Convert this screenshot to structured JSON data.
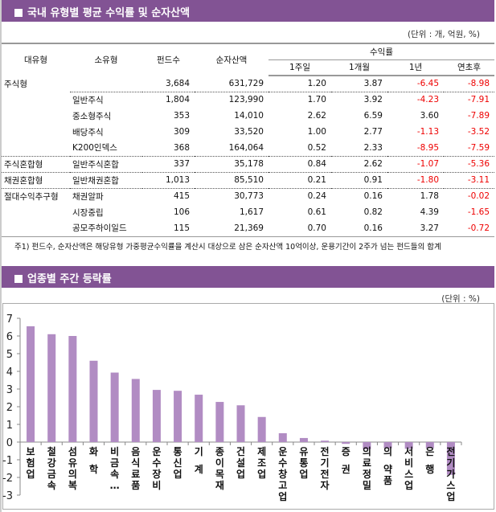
{
  "section1": {
    "title": "국내 유형별 평균 수익률 및 순자산액",
    "unit": "(단위 : 개, 억원, %)"
  },
  "table": {
    "headers": {
      "major": "대유형",
      "minor": "소유형",
      "funds": "펀드수",
      "assets": "순자산액",
      "returns": "수익률",
      "w1": "1주일",
      "m1": "1개월",
      "y1": "1년",
      "ytd": "연초후"
    },
    "rows": [
      {
        "major": "주식형",
        "minor": "",
        "funds": "3,684",
        "assets": "631,729",
        "w1": "1.20",
        "m1": "3.87",
        "y1": "-6.45",
        "ytd": "-8.98"
      },
      {
        "major": "",
        "minor": "일반주식",
        "funds": "1,804",
        "assets": "123,990",
        "w1": "1.70",
        "m1": "3.92",
        "y1": "-4.23",
        "ytd": "-7.91"
      },
      {
        "major": "",
        "minor": "중소형주식",
        "funds": "353",
        "assets": "14,010",
        "w1": "2.62",
        "m1": "6.59",
        "y1": "3.60",
        "ytd": "-7.89"
      },
      {
        "major": "",
        "minor": "배당주식",
        "funds": "309",
        "assets": "33,520",
        "w1": "1.00",
        "m1": "2.77",
        "y1": "-1.13",
        "ytd": "-3.52"
      },
      {
        "major": "",
        "minor": "K200인덱스",
        "funds": "368",
        "assets": "164,064",
        "w1": "0.52",
        "m1": "2.33",
        "y1": "-8.95",
        "ytd": "-7.59"
      },
      {
        "major": "주식혼합형",
        "minor": "일반주식혼합",
        "funds": "337",
        "assets": "35,178",
        "w1": "0.84",
        "m1": "2.62",
        "y1": "-1.07",
        "ytd": "-5.36"
      },
      {
        "major": "채권혼합형",
        "minor": "일반채권혼합",
        "funds": "1,013",
        "assets": "85,510",
        "w1": "0.21",
        "m1": "0.91",
        "y1": "-1.80",
        "ytd": "-3.11"
      },
      {
        "major": "절대수익추구형",
        "minor": "채권알파",
        "funds": "415",
        "assets": "30,773",
        "w1": "0.24",
        "m1": "0.16",
        "y1": "1.78",
        "ytd": "-0.02"
      },
      {
        "major": "",
        "minor": "시장중립",
        "funds": "106",
        "assets": "1,617",
        "w1": "0.61",
        "m1": "0.82",
        "y1": "4.39",
        "ytd": "-1.65"
      },
      {
        "major": "",
        "minor": "공모주하이일드",
        "funds": "115",
        "assets": "21,369",
        "w1": "0.70",
        "m1": "0.16",
        "y1": "3.27",
        "ytd": "-0.72"
      }
    ]
  },
  "note": "주1) 펀드수, 순자산액은 해당유형 가중평균수익률을 계산시 대상으로 삼은 순자산액 10억이상, 운용기간이 2주가 넘는 펀드들의 합계",
  "section2": {
    "title": "업종별 주간 등락률",
    "unit": "(단위 : %)"
  },
  "colors": {
    "header": "#825394",
    "bar": "#b18cc3",
    "negative": "#e00000"
  },
  "chart_data": {
    "type": "bar",
    "categories": [
      "보험업",
      "철강금속",
      "섬유의복",
      "화 학",
      "비금속…",
      "음식료품",
      "운수장비",
      "통신업",
      "기 계",
      "종이목재",
      "건설업",
      "제조업",
      "운수창고업",
      "유통업",
      "전기전자",
      "증 권",
      "의료정밀",
      "의 약품",
      "서비스업",
      "은 행",
      "전기가스업"
    ],
    "values": [
      6.55,
      6.1,
      6.0,
      4.6,
      3.93,
      3.57,
      2.95,
      2.9,
      2.68,
      2.27,
      2.08,
      1.42,
      0.5,
      0.23,
      0.08,
      -0.1,
      -0.4,
      -0.35,
      -0.38,
      -0.35,
      -1.85
    ],
    "ylim": [
      -3,
      7
    ],
    "yticks": [
      "-3",
      "-2",
      "-1",
      "0",
      "1",
      "2",
      "3",
      "4",
      "5",
      "6",
      "7"
    ],
    "grid": false
  }
}
